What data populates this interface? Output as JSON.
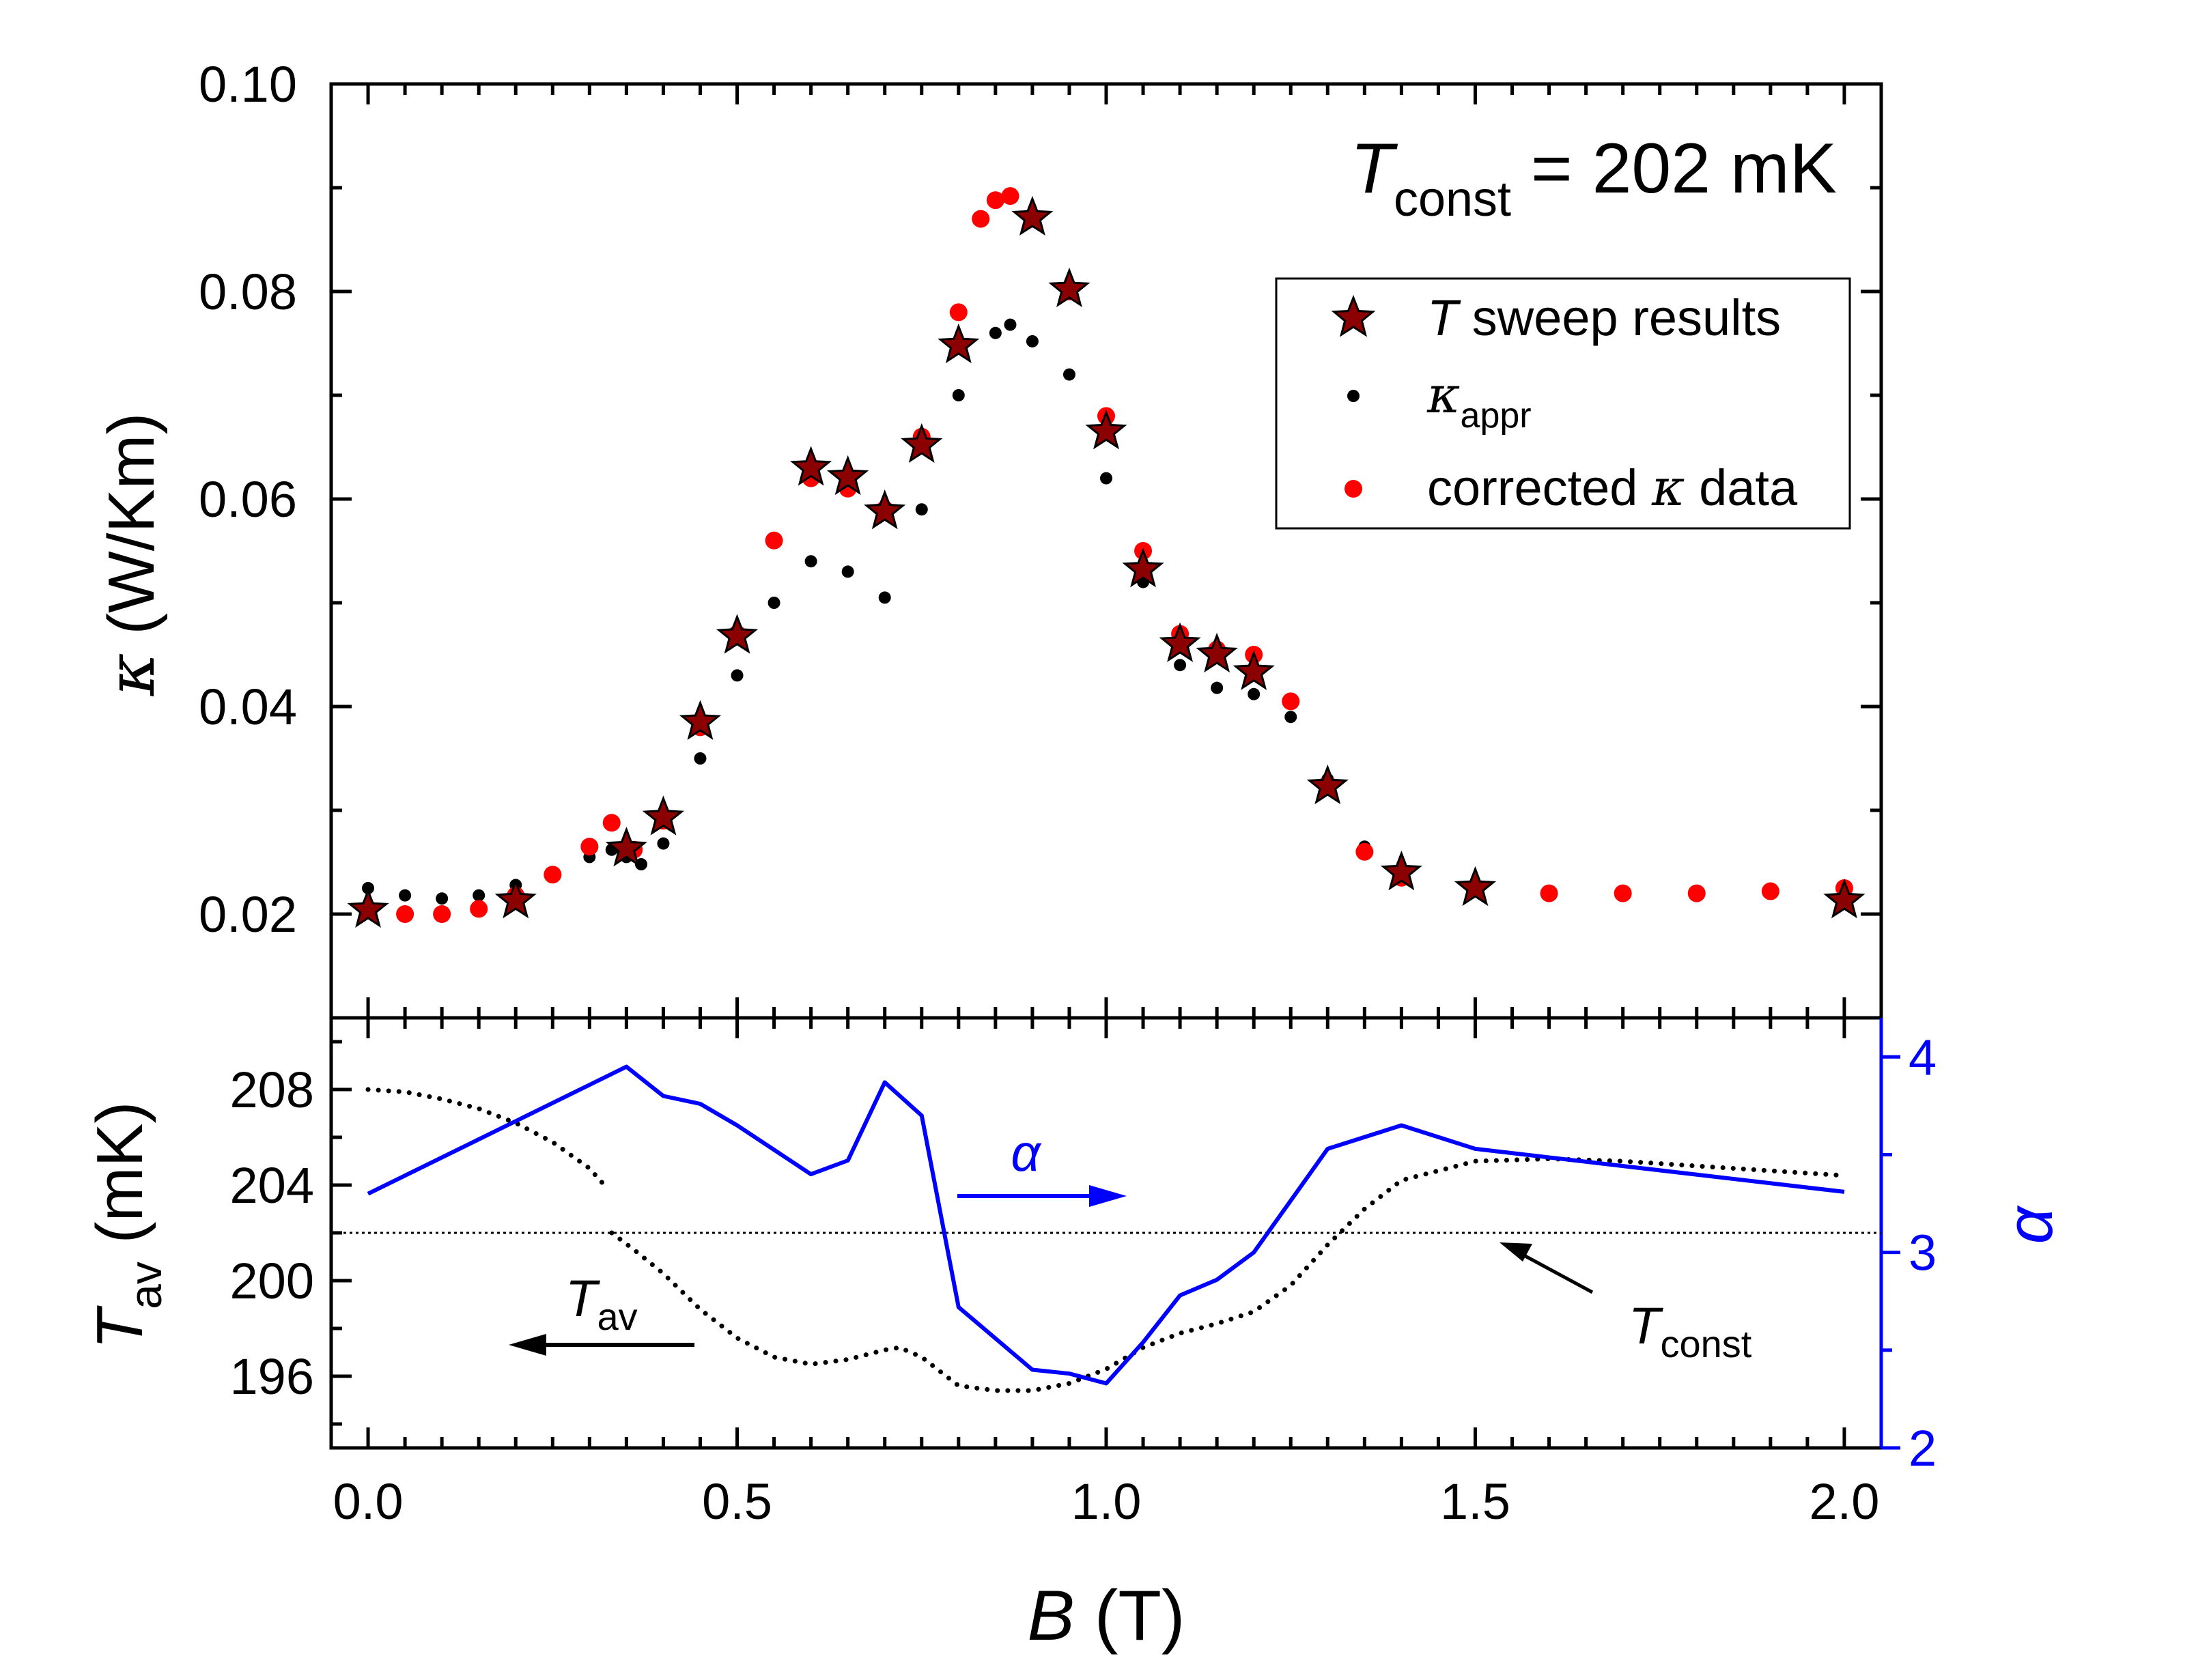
{
  "chart_data": [
    {
      "panel": "top",
      "type": "scatter",
      "xlabel_var": "B",
      "xlabel_unit": " (T)",
      "ylabel_sym": "κ",
      "ylabel_unit": " (W/Km)",
      "xlim": [
        -0.05,
        2.05
      ],
      "ylim": [
        0.01,
        0.1
      ],
      "yticks": [
        "0.02",
        "0.04",
        "0.06",
        "0.08",
        "0.10"
      ],
      "ytick_values": [
        0.02,
        0.04,
        0.06,
        0.08,
        0.1
      ],
      "annotation": {
        "sym": "T",
        "sub": "const",
        "rest": " = 202 mK"
      },
      "legend_position": "upper-right",
      "legend": {
        "stars_sym": "T",
        "stars_rest": " sweep results",
        "black_sym": "κ",
        "black_sub": "appr",
        "red_pre": "corrected ",
        "red_sym": "κ",
        "red_post": " data"
      },
      "colors": {
        "stars": "#8b0000",
        "black": "#000000",
        "red": "#ff0000"
      },
      "series": [
        {
          "name": "T sweep results",
          "style": "star",
          "x": [
            0.0,
            0.2,
            0.35,
            0.4,
            0.45,
            0.5,
            0.6,
            0.65,
            0.7,
            0.75,
            0.8,
            0.9,
            0.95,
            1.0,
            1.05,
            1.1,
            1.15,
            1.2,
            1.3,
            1.4,
            1.5,
            2.0
          ],
          "y": [
            0.0204,
            0.0213,
            0.0263,
            0.0293,
            0.0385,
            0.0468,
            0.063,
            0.0621,
            0.0588,
            0.0652,
            0.0748,
            0.0871,
            0.0802,
            0.0665,
            0.0532,
            0.046,
            0.045,
            0.0433,
            0.0323,
            0.024,
            0.0225,
            0.0213
          ]
        },
        {
          "name": "κappr",
          "style": "dot",
          "x": [
            0.0,
            0.05,
            0.1,
            0.15,
            0.2,
            0.25,
            0.3,
            0.33,
            0.35,
            0.37,
            0.4,
            0.45,
            0.5,
            0.55,
            0.6,
            0.65,
            0.7,
            0.75,
            0.8,
            0.85,
            0.87,
            0.9,
            0.95,
            1.0,
            1.05,
            1.1,
            1.15,
            1.2,
            1.25,
            1.3,
            1.35,
            1.4,
            1.5,
            1.6,
            1.7,
            1.8,
            1.9,
            2.0
          ],
          "y": [
            0.0225,
            0.0218,
            0.0215,
            0.0218,
            0.0228,
            0.024,
            0.0255,
            0.0262,
            0.0255,
            0.0248,
            0.0268,
            0.035,
            0.043,
            0.05,
            0.054,
            0.053,
            0.0505,
            0.059,
            0.07,
            0.076,
            0.0768,
            0.0752,
            0.072,
            0.062,
            0.052,
            0.044,
            0.0418,
            0.0412,
            0.039,
            0.033,
            0.0265,
            0.0235,
            0.0225,
            0.0222,
            0.0222,
            0.0222,
            0.0224,
            0.0225
          ]
        },
        {
          "name": "corrected κ data",
          "style": "dot",
          "x": [
            0.0,
            0.05,
            0.1,
            0.15,
            0.2,
            0.25,
            0.3,
            0.33,
            0.36,
            0.4,
            0.45,
            0.5,
            0.55,
            0.6,
            0.65,
            0.7,
            0.75,
            0.8,
            0.83,
            0.85,
            0.87,
            0.9,
            0.95,
            1.0,
            1.05,
            1.1,
            1.15,
            1.2,
            1.25,
            1.3,
            1.35,
            1.4,
            1.5,
            1.6,
            1.7,
            1.8,
            1.9,
            2.0
          ],
          "y": [
            0.0205,
            0.02,
            0.02,
            0.0205,
            0.0218,
            0.0238,
            0.0265,
            0.0288,
            0.0262,
            0.029,
            0.038,
            0.047,
            0.056,
            0.062,
            0.061,
            0.059,
            0.066,
            0.078,
            0.087,
            0.0888,
            0.0892,
            0.087,
            0.08,
            0.068,
            0.055,
            0.047,
            0.0455,
            0.045,
            0.0405,
            0.0325,
            0.026,
            0.0235,
            0.0225,
            0.022,
            0.022,
            0.022,
            0.0222,
            0.0225
          ]
        }
      ]
    },
    {
      "panel": "bottom",
      "type": "line",
      "ylabel_sym": "T",
      "ylabel_sub": "av",
      "ylabel_unit": " (mK)",
      "ylabel_right": "α",
      "ylim": [
        193,
        211
      ],
      "ylim_right": [
        2,
        4.2
      ],
      "yticks": [
        "196",
        "200",
        "204",
        "208"
      ],
      "ytick_values": [
        196,
        200,
        204,
        208
      ],
      "yticks_right": [
        "2",
        "3",
        "4"
      ],
      "ytick_values_right": [
        2,
        3,
        4
      ],
      "xticks": [
        "0.0",
        "0.5",
        "1.0",
        "1.5",
        "2.0"
      ],
      "xtick_values": [
        0.0,
        0.5,
        1.0,
        1.5,
        2.0
      ],
      "labels": {
        "alpha": "α",
        "tav_sym": "T",
        "tav_sub": "av",
        "tconst_sym": "T",
        "tconst_sub": "const"
      },
      "reference_line_y": 202,
      "colors": {
        "tav": "#000000",
        "alpha": "#0000ff"
      },
      "series": [
        {
          "name": "Tav",
          "axis": "left",
          "style": "dotted",
          "x": [
            0.0,
            0.05,
            0.1,
            0.15,
            0.2,
            0.25,
            0.3,
            0.32
          ],
          "y": [
            208.0,
            207.9,
            207.6,
            207.2,
            206.6,
            205.8,
            204.7,
            204.0
          ]
        },
        {
          "name": "Tav",
          "axis": "left",
          "style": "dotted",
          "x": [
            0.33,
            0.36,
            0.4,
            0.45,
            0.5,
            0.55,
            0.6,
            0.65,
            0.7,
            0.72,
            0.75,
            0.8,
            0.85,
            0.9,
            0.95,
            1.0,
            1.05,
            1.1,
            1.15,
            1.2,
            1.25,
            1.3,
            1.35,
            1.4,
            1.5,
            1.6,
            1.7,
            1.8,
            1.9,
            2.0
          ],
          "y": [
            202.0,
            201.3,
            200.3,
            198.8,
            197.6,
            196.8,
            196.5,
            196.7,
            197.1,
            197.2,
            196.8,
            195.6,
            195.4,
            195.4,
            195.7,
            196.3,
            197.2,
            197.8,
            198.2,
            198.7,
            199.8,
            201.5,
            203.0,
            204.2,
            205.0,
            205.1,
            205.0,
            204.8,
            204.6,
            204.4
          ]
        },
        {
          "name": "α",
          "axis": "right",
          "style": "line",
          "x": [
            0.0,
            0.35,
            0.4,
            0.45,
            0.5,
            0.6,
            0.65,
            0.7,
            0.75,
            0.8,
            0.9,
            0.95,
            1.0,
            1.05,
            1.1,
            1.15,
            1.2,
            1.3,
            1.4,
            1.5,
            2.0
          ],
          "y": [
            3.3,
            3.95,
            3.8,
            3.76,
            3.65,
            3.4,
            3.47,
            3.87,
            3.7,
            2.72,
            2.4,
            2.38,
            2.33,
            2.54,
            2.78,
            2.86,
            3.0,
            3.53,
            3.65,
            3.53,
            3.31
          ]
        }
      ]
    }
  ]
}
